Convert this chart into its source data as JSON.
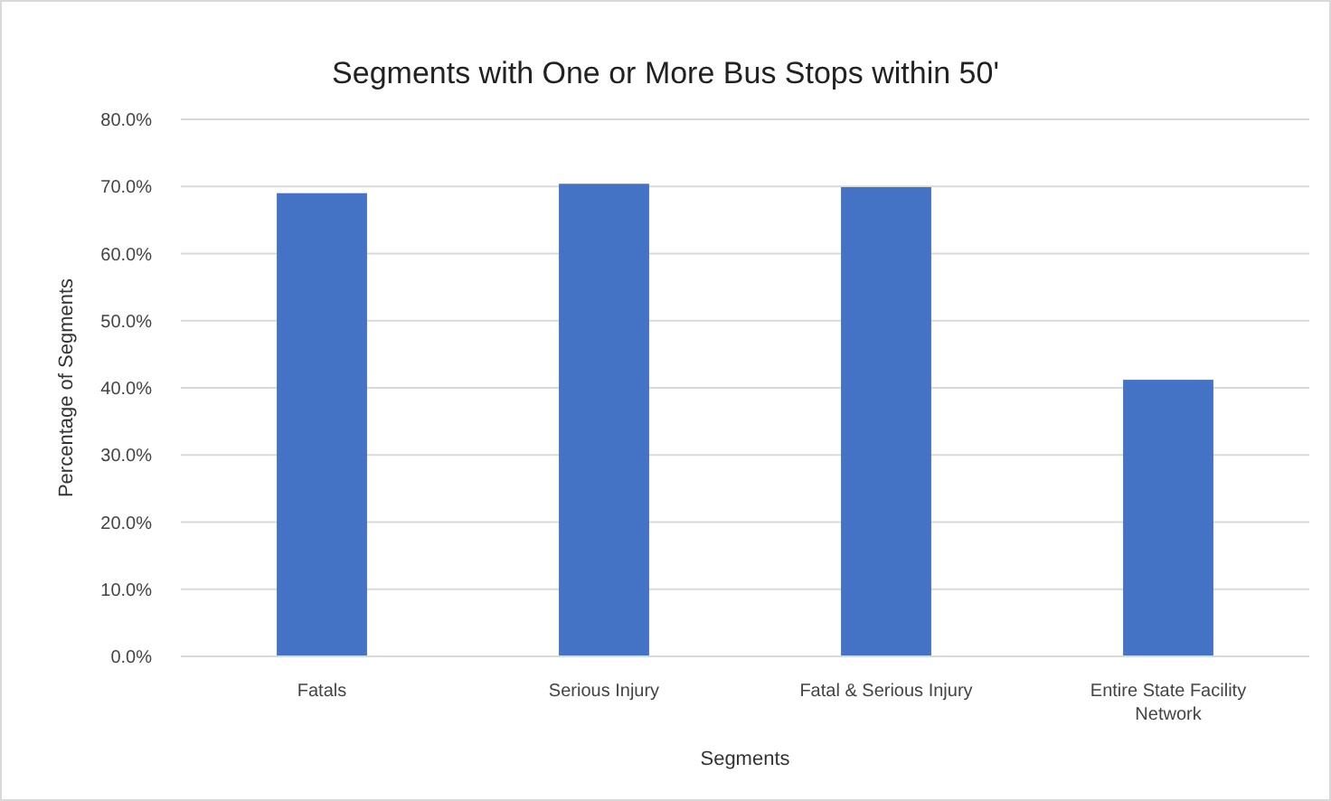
{
  "chart_data": {
    "type": "bar",
    "title": "Segments with One or More Bus Stops within 50'",
    "xlabel": "Segments",
    "ylabel": "Percentage of Segments",
    "categories": [
      "Fatals",
      "Serious Injury",
      "Fatal & Serious Injury",
      "Entire State Facility Network"
    ],
    "values": [
      69.0,
      70.4,
      69.9,
      41.2
    ],
    "color": "#4472c4",
    "ylim": [
      0,
      80
    ],
    "yticks": [
      {
        "value": 0,
        "label": "0.0%"
      },
      {
        "value": 10,
        "label": "10.0%"
      },
      {
        "value": 20,
        "label": "20.0%"
      },
      {
        "value": 30,
        "label": "30.0%"
      },
      {
        "value": 40,
        "label": "40.0%"
      },
      {
        "value": 50,
        "label": "50.0%"
      },
      {
        "value": 60,
        "label": "60.0%"
      },
      {
        "value": 70,
        "label": "70.0%"
      },
      {
        "value": 80,
        "label": "80.0%"
      }
    ],
    "grid": "y"
  }
}
